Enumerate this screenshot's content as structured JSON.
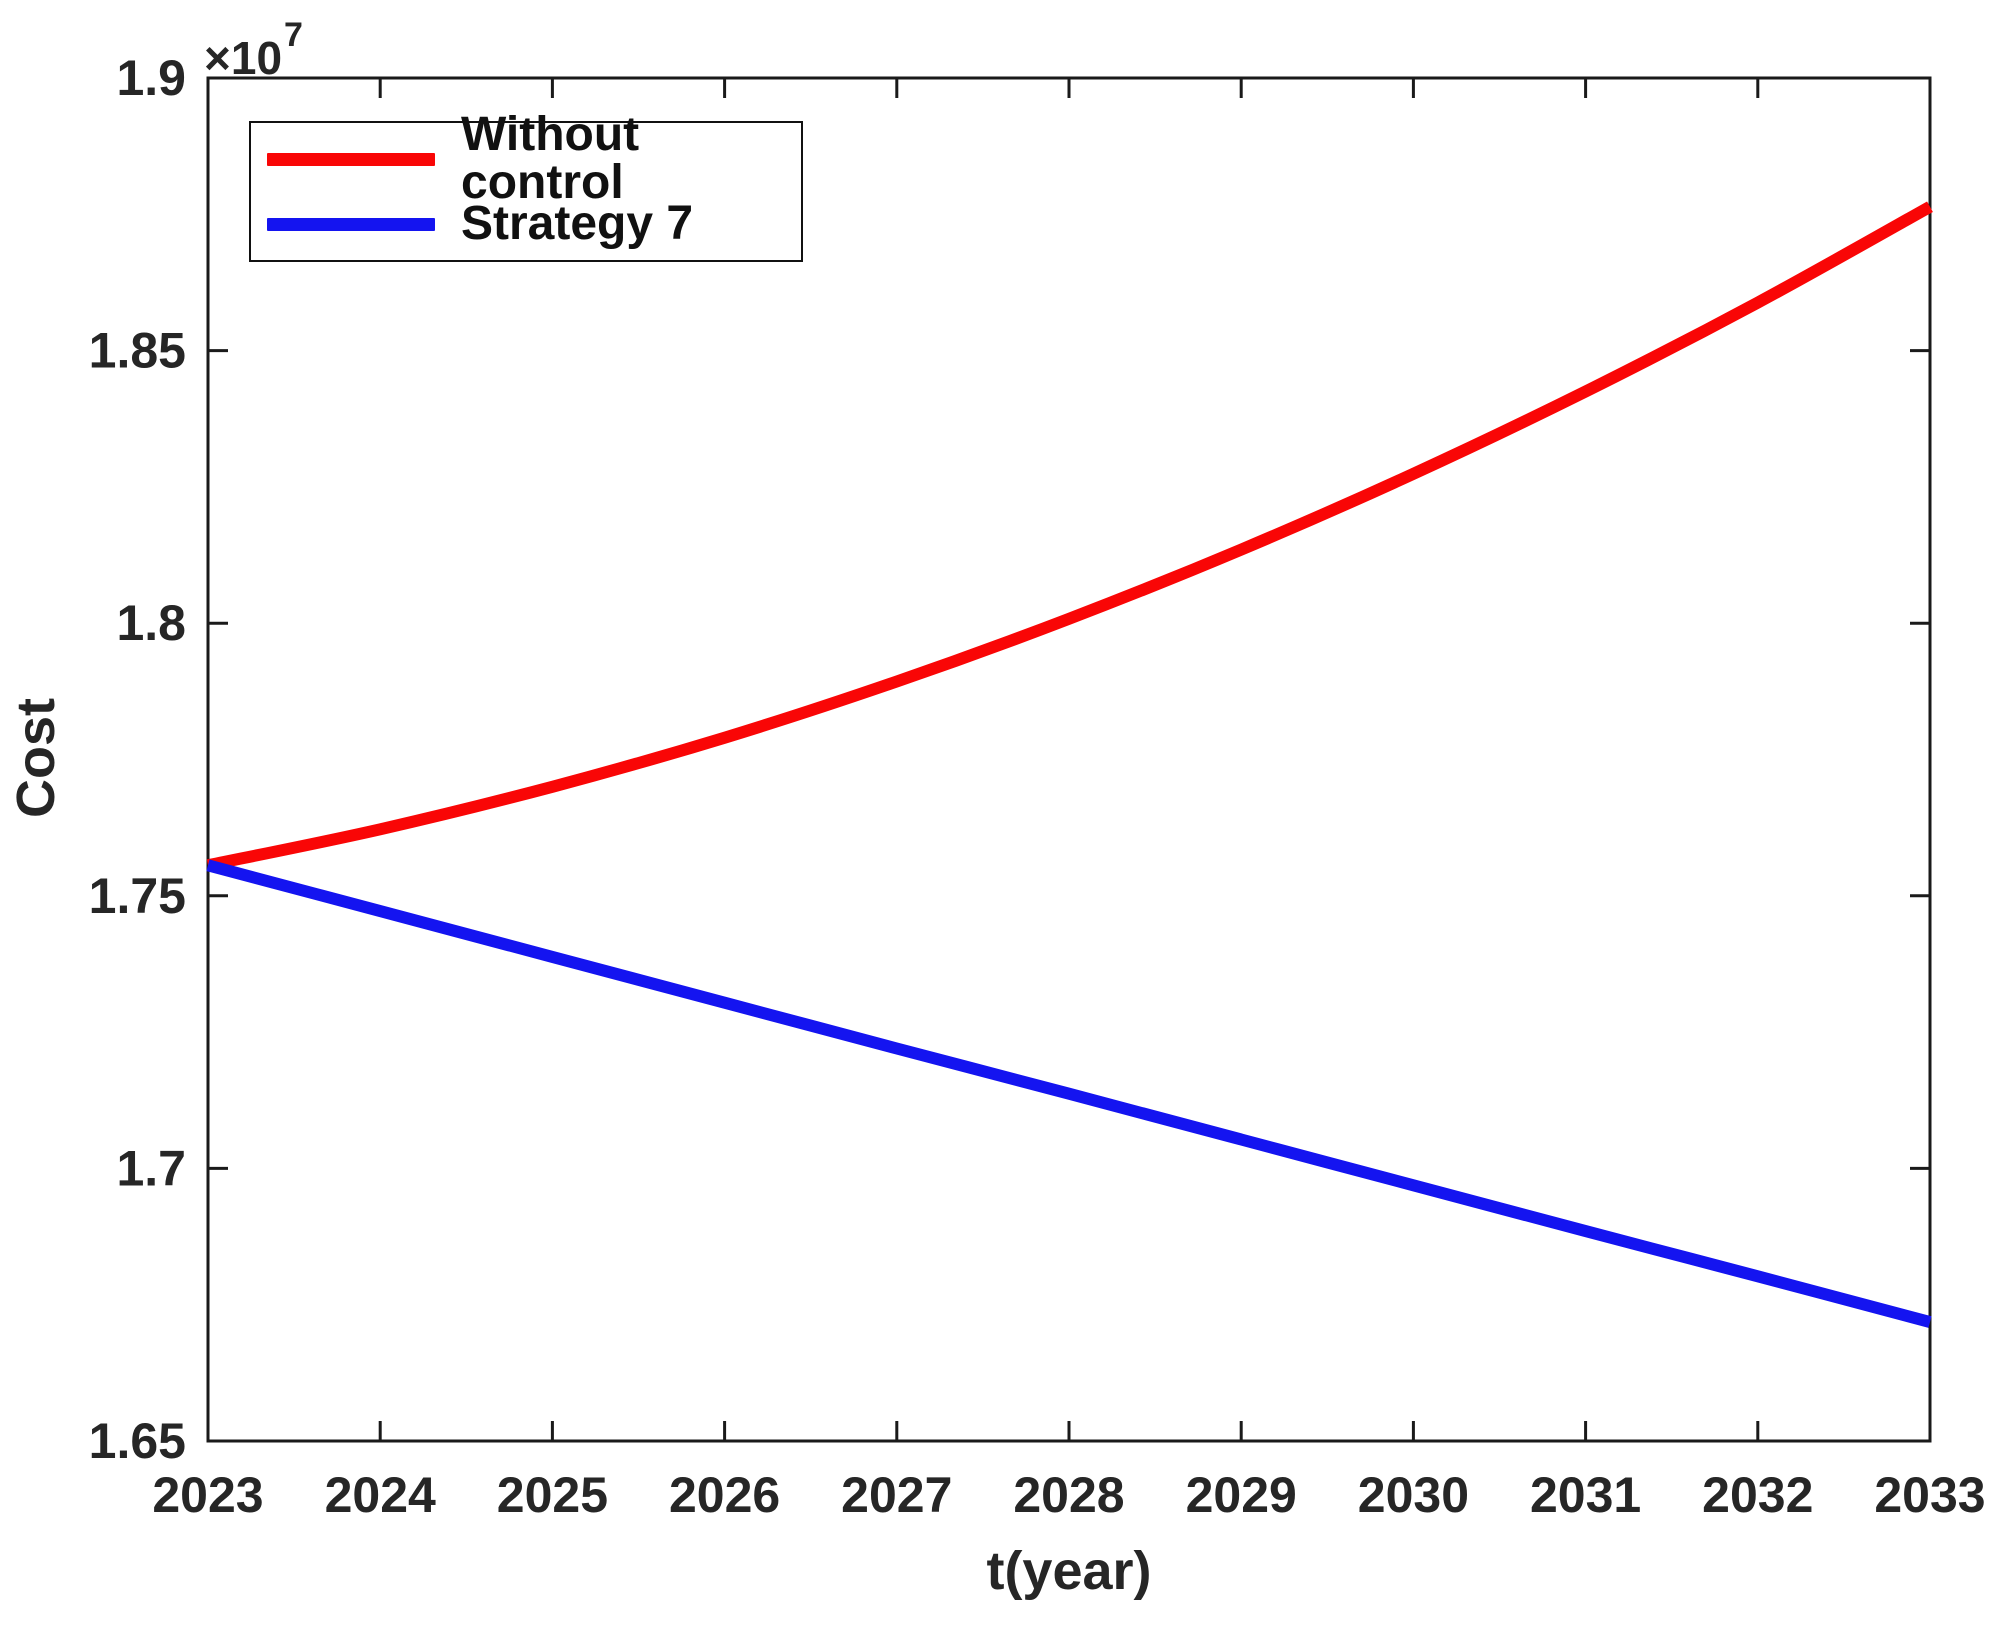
{
  "figure": {
    "xlabel": "t(year)",
    "ylabel": "Cost",
    "y_multiplier_base": "×10",
    "y_multiplier_exponent": "7"
  },
  "chart_data": {
    "type": "line",
    "title": "",
    "xlabel": "t(year)",
    "ylabel": "Cost",
    "y_units": "values are in units of 10^7 (axis multiplier ×10^7 shown on plot)",
    "xlim": [
      2023,
      2033
    ],
    "ylim": [
      1.65,
      1.9
    ],
    "grid": false,
    "legend_position": "top-left",
    "x_ticks": [
      2023,
      2024,
      2025,
      2026,
      2027,
      2028,
      2029,
      2030,
      2031,
      2032,
      2033
    ],
    "x_tick_labels": [
      "2023",
      "2024",
      "2025",
      "2026",
      "2027",
      "2028",
      "2029",
      "2030",
      "2031",
      "2032",
      "2033"
    ],
    "y_ticks": [
      1.65,
      1.7,
      1.75,
      1.8,
      1.85,
      1.9
    ],
    "y_tick_labels": [
      "1.65",
      "1.7",
      "1.75",
      "1.8",
      "1.85",
      "1.9"
    ],
    "axis_color": "#1a1a1a",
    "text_color": "#262626",
    "series": [
      {
        "name": "Without control",
        "color": "#f90606",
        "x": [
          2023,
          2024,
          2025,
          2026,
          2027,
          2028,
          2029,
          2030,
          2031,
          2032,
          2033
        ],
        "values": [
          1.7556,
          1.7622,
          1.77,
          1.779,
          1.7893,
          1.8008,
          1.8135,
          1.8274,
          1.8425,
          1.8588,
          1.8764
        ]
      },
      {
        "name": "Strategy 7",
        "color": "#1414f0",
        "x": [
          2023,
          2024,
          2025,
          2026,
          2027,
          2028,
          2029,
          2030,
          2031,
          2032,
          2033
        ],
        "values": [
          1.7556,
          1.7472,
          1.7388,
          1.7304,
          1.722,
          1.7137,
          1.7053,
          1.6969,
          1.6885,
          1.6802,
          1.6718
        ]
      }
    ]
  }
}
